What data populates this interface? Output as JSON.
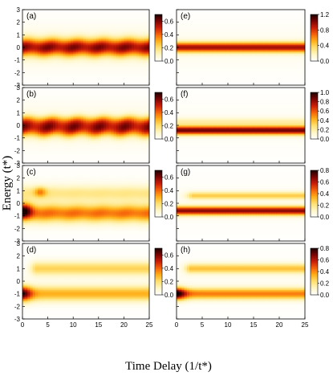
{
  "figure": {
    "xlabel": "Time Delay (1/t*)",
    "ylabel": "Energy (t*)"
  },
  "colormap": [
    "#ffffff",
    "#fff6c4",
    "#ffe070",
    "#ffb01a",
    "#f5620a",
    "#c91d08",
    "#7a0505",
    "#1c0000"
  ],
  "chart_data": [
    {
      "type": "heatmap",
      "panel": "(a)",
      "column": "left",
      "row": 0,
      "xlim": [
        0,
        25
      ],
      "ylim": [
        -3,
        3
      ],
      "xticks": [
        "0",
        "5",
        "10",
        "15",
        "20",
        "25"
      ],
      "yticks": [
        "-3",
        "-2",
        "-1",
        "0",
        "1",
        "2",
        "3"
      ],
      "colorbar": {
        "range": [
          0,
          0.7
        ],
        "ticks": [
          "0.0",
          "0.2",
          "0.4",
          "0.6"
        ],
        "tick_values": [
          0,
          0.2,
          0.4,
          0.6
        ]
      },
      "bands": [
        {
          "center": 0.0,
          "width": 0.7,
          "intensity": 0.75,
          "oscillation": 0.08
        }
      ],
      "transient": [],
      "background": 0.06
    },
    {
      "type": "heatmap",
      "panel": "(b)",
      "column": "left",
      "row": 1,
      "xlim": [
        0,
        25
      ],
      "ylim": [
        -3,
        3
      ],
      "xticks": [
        "0",
        "5",
        "10",
        "15",
        "20",
        "25"
      ],
      "yticks": [
        "-3",
        "-2",
        "-1",
        "0",
        "1",
        "2",
        "3"
      ],
      "colorbar": {
        "range": [
          0,
          0.7
        ],
        "ticks": [
          "0.0",
          "0.2",
          "0.4",
          "0.6"
        ],
        "tick_values": [
          0,
          0.2,
          0.4,
          0.6
        ]
      },
      "bands": [
        {
          "center": -0.3,
          "width": 0.6,
          "intensity": 0.62,
          "oscillation": 0.12
        },
        {
          "center": 0.3,
          "width": 0.5,
          "intensity": 0.35,
          "oscillation": 0.1
        }
      ],
      "transient": [],
      "background": 0.06
    },
    {
      "type": "heatmap",
      "panel": "(c)",
      "column": "left",
      "row": 2,
      "xlim": [
        0,
        25
      ],
      "ylim": [
        -3,
        3
      ],
      "xticks": [
        "0",
        "5",
        "10",
        "15",
        "20",
        "25"
      ],
      "yticks": [
        "-3",
        "-2",
        "-1",
        "0",
        "1",
        "2",
        "3"
      ],
      "colorbar": {
        "range": [
          0,
          0.7
        ],
        "ticks": [
          "0.0",
          "0.2",
          "0.4",
          "0.6"
        ],
        "tick_values": [
          0,
          0.2,
          0.4,
          0.6
        ]
      },
      "bands": [
        {
          "center": -0.8,
          "width": 0.7,
          "intensity": 0.5,
          "oscillation": 0.04
        },
        {
          "center": 0.8,
          "width": 0.6,
          "intensity": 0.2,
          "oscillation": 0.02
        }
      ],
      "transient": [
        {
          "t": 0.3,
          "e": -0.6,
          "st": 1.6,
          "se": 0.6,
          "amp": 0.55
        },
        {
          "t": 3.5,
          "e": 0.9,
          "st": 1.2,
          "se": 0.4,
          "amp": 0.3
        }
      ],
      "background": 0.05
    },
    {
      "type": "heatmap",
      "panel": "(d)",
      "column": "left",
      "row": 3,
      "xlim": [
        0,
        25
      ],
      "ylim": [
        -3,
        3
      ],
      "xticks": [
        "0",
        "5",
        "10",
        "15",
        "20",
        "25"
      ],
      "yticks": [
        "-3",
        "-2",
        "-1",
        "0",
        "1",
        "2",
        "3"
      ],
      "colorbar": {
        "range": [
          0,
          0.7
        ],
        "ticks": [
          "0.0",
          "0.2",
          "0.4",
          "0.6"
        ],
        "tick_values": [
          0,
          0.2,
          0.4,
          0.6
        ]
      },
      "bands": [
        {
          "center": -1.0,
          "width": 0.6,
          "intensity": 0.4,
          "oscillation": 0.0
        },
        {
          "center": 1.0,
          "width": 0.55,
          "intensity": 0.3,
          "oscillation": 0.0,
          "start": 2.5
        }
      ],
      "transient": [
        {
          "t": 0.0,
          "e": -1.0,
          "st": 1.8,
          "se": 0.6,
          "amp": 0.55
        }
      ],
      "background": 0.03
    },
    {
      "type": "heatmap",
      "panel": "(e)",
      "column": "right",
      "row": 0,
      "xlim": [
        0,
        25
      ],
      "ylim": [
        -3,
        3
      ],
      "xticks": [
        "0",
        "5",
        "10",
        "15",
        "20",
        "25"
      ],
      "yticks": [],
      "colorbar": {
        "range": [
          0,
          1.2
        ],
        "ticks": [
          "0.0",
          "0.4",
          "0.8",
          "1.2"
        ],
        "tick_values": [
          0,
          0.4,
          0.8,
          1.2
        ]
      },
      "bands": [
        {
          "center": 0.0,
          "width": 0.4,
          "intensity": 0.75,
          "oscillation": 0.0
        }
      ],
      "transient": [],
      "background": 0.04
    },
    {
      "type": "heatmap",
      "panel": "(f)",
      "column": "right",
      "row": 1,
      "xlim": [
        0,
        25
      ],
      "ylim": [
        -3,
        3
      ],
      "xticks": [
        "0",
        "5",
        "10",
        "15",
        "20",
        "25"
      ],
      "yticks": [],
      "colorbar": {
        "range": [
          0,
          1.0
        ],
        "ticks": [
          "0.0",
          "0.2",
          "0.4",
          "0.6",
          "0.8",
          "1.0"
        ],
        "tick_values": [
          0,
          0.2,
          0.4,
          0.6,
          0.8,
          1.0
        ]
      },
      "bands": [
        {
          "center": -0.4,
          "width": 0.35,
          "intensity": 0.85,
          "oscillation": 0.0
        },
        {
          "center": 0.3,
          "width": 0.3,
          "intensity": 0.15,
          "oscillation": 0.0
        }
      ],
      "transient": [],
      "background": 0.03
    },
    {
      "type": "heatmap",
      "panel": "(g)",
      "column": "right",
      "row": 2,
      "xlim": [
        0,
        25
      ],
      "ylim": [
        -3,
        3
      ],
      "xticks": [
        "0",
        "5",
        "10",
        "15",
        "20",
        "25"
      ],
      "yticks": [],
      "colorbar": {
        "range": [
          0,
          0.8
        ],
        "ticks": [
          "0.0",
          "0.2",
          "0.4",
          "0.6",
          "0.8"
        ],
        "tick_values": [
          0,
          0.2,
          0.4,
          0.6,
          0.8
        ]
      },
      "bands": [
        {
          "center": -0.6,
          "width": 0.35,
          "intensity": 0.8,
          "oscillation": 0.0
        },
        {
          "center": 0.6,
          "width": 0.3,
          "intensity": 0.32,
          "oscillation": 0.0,
          "start": 3.0
        }
      ],
      "transient": [],
      "background": 0.03
    },
    {
      "type": "heatmap",
      "panel": "(h)",
      "column": "right",
      "row": 3,
      "xlim": [
        0,
        25
      ],
      "ylim": [
        -3,
        3
      ],
      "xticks": [
        "0",
        "5",
        "10",
        "15",
        "20",
        "25"
      ],
      "yticks": [],
      "colorbar": {
        "range": [
          0,
          0.8
        ],
        "ticks": [
          "0.0",
          "0.2",
          "0.4",
          "0.6",
          "0.8"
        ],
        "tick_values": [
          0,
          0.2,
          0.4,
          0.6,
          0.8
        ]
      },
      "bands": [
        {
          "center": -1.0,
          "width": 0.45,
          "intensity": 0.5,
          "oscillation": 0.0
        },
        {
          "center": 1.0,
          "width": 0.4,
          "intensity": 0.35,
          "oscillation": 0.0,
          "start": 2.5
        }
      ],
      "transient": [
        {
          "t": 0.0,
          "e": -1.0,
          "st": 1.8,
          "se": 0.5,
          "amp": 0.55
        }
      ],
      "background": 0.03
    }
  ]
}
